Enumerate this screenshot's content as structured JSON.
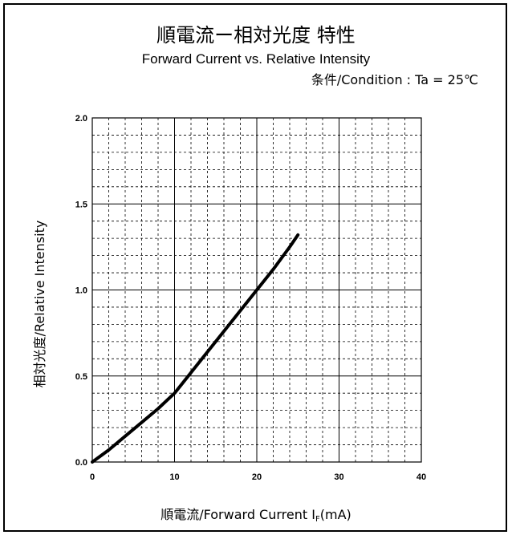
{
  "titles": {
    "jp": "順電流ー相対光度 特性",
    "en": "Forward Current vs. Relative Intensity",
    "condition": "条件/Condition : Ta = 25℃"
  },
  "axes": {
    "ylabel": "相対光度/Relative Intensity",
    "xlabel_main": "順電流/Forward Current I",
    "xlabel_sub": "F",
    "xlabel_unit": "(mA)"
  },
  "chart_data": {
    "type": "line",
    "title": "Forward Current vs. Relative Intensity",
    "xlabel": "順電流/Forward Current IF(mA)",
    "ylabel": "相対光度/Relative Intensity",
    "xlim": [
      0,
      40
    ],
    "ylim": [
      0,
      2.0
    ],
    "xticks": [
      "0",
      "10",
      "20",
      "30",
      "40"
    ],
    "yticks": [
      "0.0",
      "0.5",
      "1.0",
      "1.5",
      "2.0"
    ],
    "grid": true,
    "series": [
      {
        "x": [
          0,
          2,
          4,
          6,
          8,
          10,
          12,
          14,
          16,
          18,
          20,
          22,
          24,
          25
        ],
        "y": [
          0,
          0.07,
          0.15,
          0.23,
          0.31,
          0.4,
          0.52,
          0.64,
          0.76,
          0.88,
          1.0,
          1.12,
          1.25,
          1.32
        ]
      }
    ],
    "colors": {
      "line": "#000000",
      "grid": "#000000"
    }
  }
}
